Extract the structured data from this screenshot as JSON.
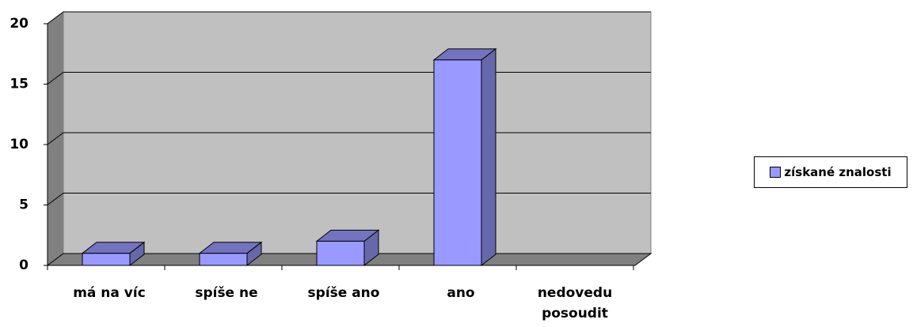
{
  "chart_data": {
    "type": "bar",
    "categories": [
      "má na víc",
      "spíše ne",
      "spíše ano",
      "ano",
      "nedovedu posoudit"
    ],
    "series": [
      {
        "name": "získané znalosti",
        "color": "#9999ff",
        "values": [
          1,
          1,
          2,
          17,
          0
        ]
      }
    ],
    "ylim": [
      0,
      20
    ],
    "yticks": [
      0,
      5,
      10,
      15,
      20
    ],
    "grid": true,
    "legend": "right"
  }
}
